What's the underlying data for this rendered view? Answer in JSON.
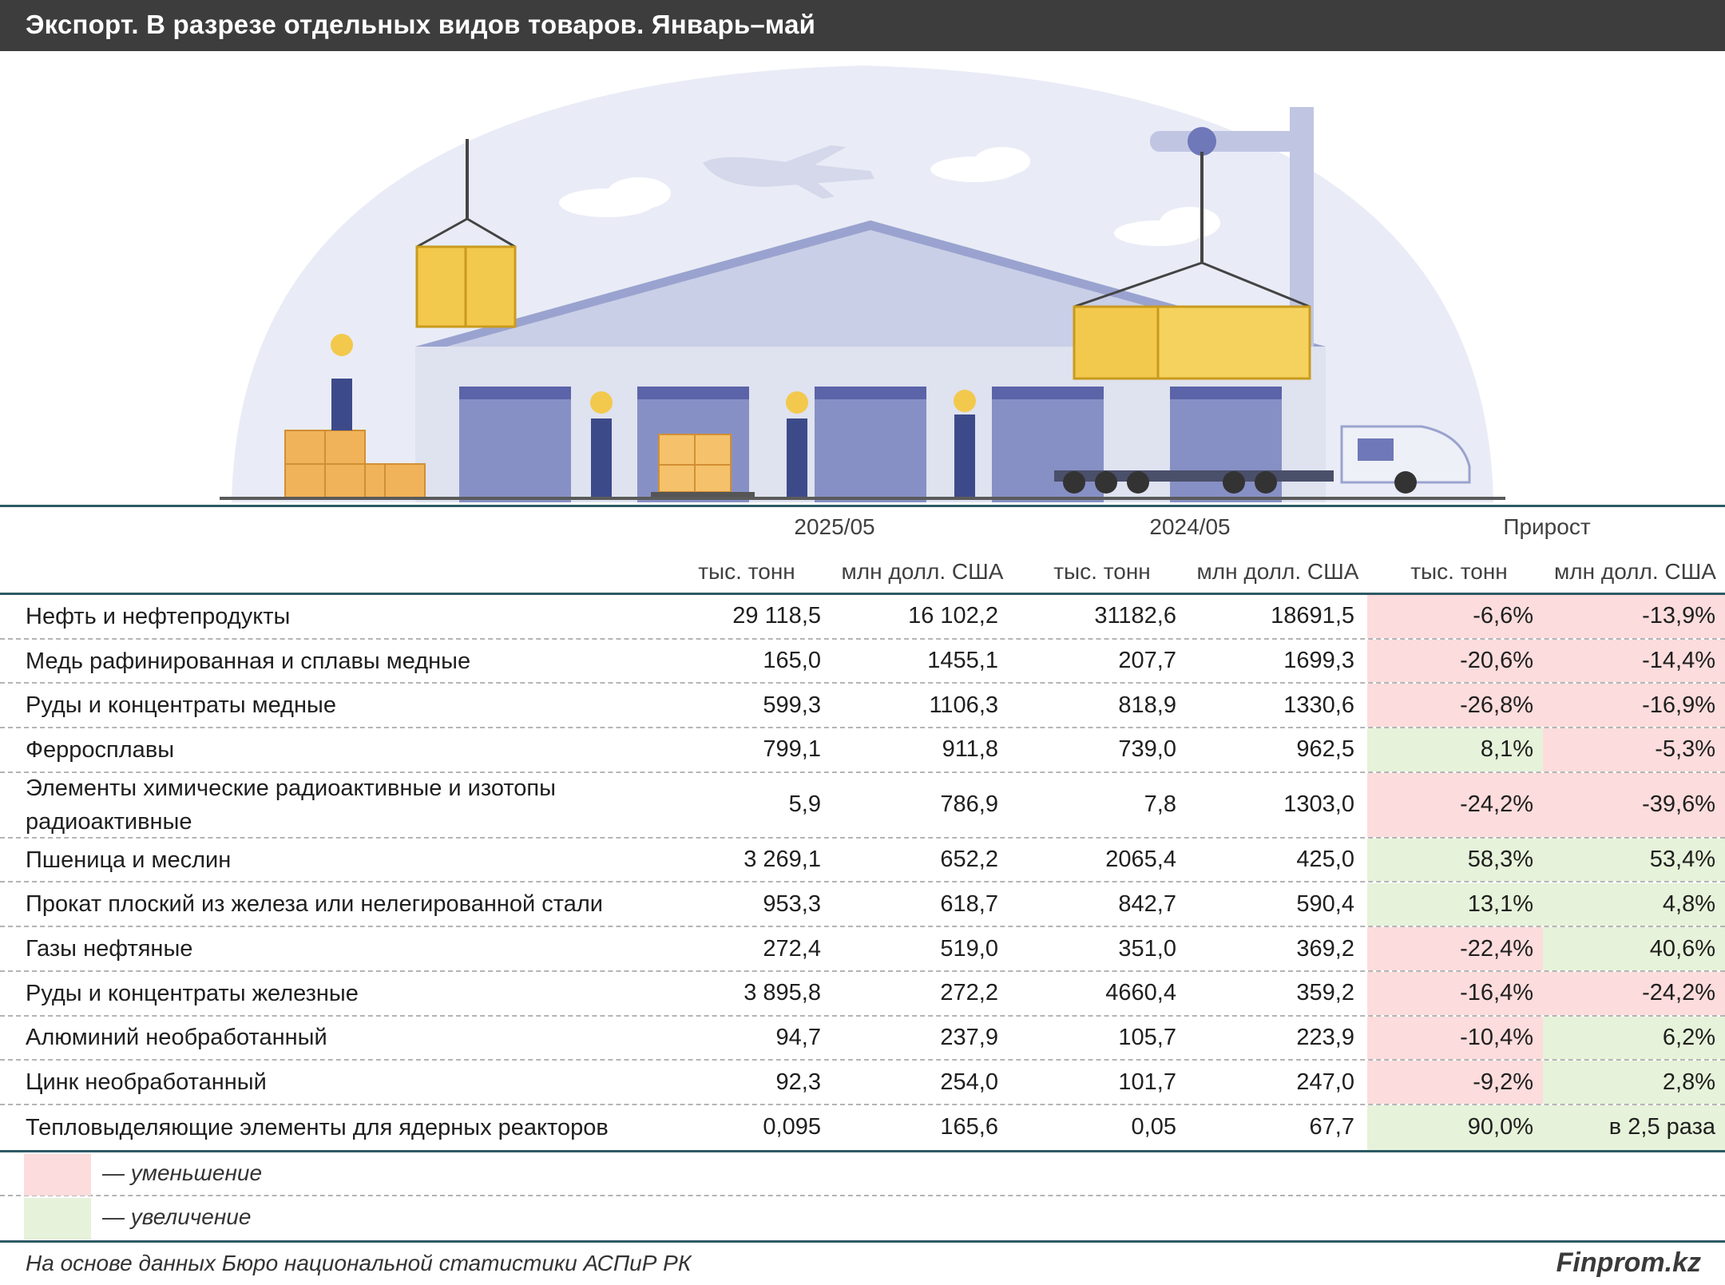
{
  "header": {
    "title": "Экспорт. В разрезе отдельных видов товаров. Январь–май"
  },
  "colors": {
    "decrease": "#fcdcdc",
    "increase": "#e6f2d9",
    "rule": "#2c5a64",
    "title_bg": "#3d3d3d"
  },
  "chart_data": {
    "type": "table",
    "group_headers": [
      "2025/05",
      "2024/05",
      "Прирост"
    ],
    "column_headers": [
      "тыс. тонн",
      "млн долл. США",
      "тыс. тонн",
      "млн долл. США",
      "тыс. тонн",
      "млн долл. США"
    ],
    "rows": [
      {
        "name": "Нефть и нефтепродукты",
        "values": [
          "29 118,5",
          "16 102,2",
          "31182,6",
          "18691,5",
          "-6,6%",
          "-13,9%"
        ],
        "trend": [
          "dec",
          "dec"
        ]
      },
      {
        "name": "Медь рафинированная и сплавы медные",
        "values": [
          "165,0",
          "1455,1",
          "207,7",
          "1699,3",
          "-20,6%",
          "-14,4%"
        ],
        "trend": [
          "dec",
          "dec"
        ]
      },
      {
        "name": "Руды и концентраты медные",
        "values": [
          "599,3",
          "1106,3",
          "818,9",
          "1330,6",
          "-26,8%",
          "-16,9%"
        ],
        "trend": [
          "dec",
          "dec"
        ]
      },
      {
        "name": "Ферросплавы",
        "values": [
          "799,1",
          "911,8",
          "739,0",
          "962,5",
          "8,1%",
          "-5,3%"
        ],
        "trend": [
          "inc",
          "dec"
        ]
      },
      {
        "name": "Элементы химические радиоактивные и изотопы радиоактивные",
        "values": [
          "5,9",
          "786,9",
          "7,8",
          "1303,0",
          "-24,2%",
          "-39,6%"
        ],
        "trend": [
          "dec",
          "dec"
        ]
      },
      {
        "name": "Пшеница и меслин",
        "values": [
          "3 269,1",
          "652,2",
          "2065,4",
          "425,0",
          "58,3%",
          "53,4%"
        ],
        "trend": [
          "inc",
          "inc"
        ]
      },
      {
        "name": "Прокат плоский из железа или нелегированной стали",
        "values": [
          "953,3",
          "618,7",
          "842,7",
          "590,4",
          "13,1%",
          "4,8%"
        ],
        "trend": [
          "inc",
          "inc"
        ]
      },
      {
        "name": "Газы нефтяные",
        "values": [
          "272,4",
          "519,0",
          "351,0",
          "369,2",
          "-22,4%",
          "40,6%"
        ],
        "trend": [
          "dec",
          "inc"
        ]
      },
      {
        "name": "Руды и концентраты железные",
        "values": [
          "3 895,8",
          "272,2",
          "4660,4",
          "359,2",
          "-16,4%",
          "-24,2%"
        ],
        "trend": [
          "dec",
          "dec"
        ]
      },
      {
        "name": "Алюминий необработанный",
        "values": [
          "94,7",
          "237,9",
          "105,7",
          "223,9",
          "-10,4%",
          "6,2%"
        ],
        "trend": [
          "dec",
          "inc"
        ]
      },
      {
        "name": "Цинк необработанный",
        "values": [
          "92,3",
          "254,0",
          "101,7",
          "247,0",
          "-9,2%",
          "2,8%"
        ],
        "trend": [
          "dec",
          "inc"
        ]
      },
      {
        "name": "Тепловыделяющие элементы для ядерных реакторов",
        "values": [
          "0,095",
          "165,6",
          "0,05",
          "67,7",
          "90,0%",
          "в 2,5 раза"
        ],
        "trend": [
          "inc",
          "inc"
        ]
      }
    ]
  },
  "legend": {
    "decrease": "— уменьшение",
    "increase": "— увеличение"
  },
  "footer": {
    "source": "На основе данных Бюро национальной статистики АСПиР РК",
    "brand": "Finprom.kz"
  }
}
